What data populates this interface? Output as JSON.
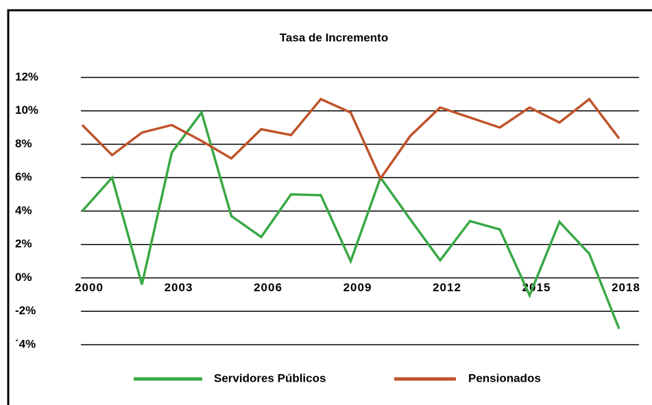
{
  "chart_data": {
    "type": "line",
    "title": "Tasa de Incremento",
    "x": [
      2000,
      2001,
      2002,
      2003,
      2004,
      2005,
      2006,
      2007,
      2008,
      2009,
      2010,
      2011,
      2012,
      2013,
      2014,
      2015,
      2016,
      2017,
      2018
    ],
    "series": [
      {
        "name": "Servidores Públicos",
        "color": "#3aa845",
        "values": [
          4.0,
          6.0,
          -0.4,
          7.5,
          9.9,
          3.7,
          2.45,
          5.0,
          4.95,
          1.0,
          6.0,
          3.5,
          1.05,
          3.4,
          2.9,
          -1.05,
          3.35,
          1.45,
          -3.05
        ]
      },
      {
        "name": "Pensionados",
        "color": "#c0532b",
        "values": [
          9.15,
          7.35,
          8.7,
          9.15,
          8.2,
          7.15,
          8.9,
          8.55,
          10.7,
          9.9,
          5.95,
          8.5,
          10.2,
          9.6,
          9.0,
          10.2,
          9.3,
          10.7,
          8.35
        ]
      }
    ],
    "xlim": [
      2000,
      2018
    ],
    "xticks": [
      2000,
      2003,
      2006,
      2009,
      2012,
      2015,
      2018
    ],
    "ylim": [
      -4,
      12
    ],
    "yticks": [
      {
        "value": -4,
        "label": "´4%"
      },
      {
        "value": -2,
        "label": "-2%"
      },
      {
        "value": 0,
        "label": "0%"
      },
      {
        "value": 2,
        "label": "2%"
      },
      {
        "value": 4,
        "label": "4%"
      },
      {
        "value": 6,
        "label": "6%"
      },
      {
        "value": 8,
        "label": "8%"
      },
      {
        "value": 10,
        "label": "10%"
      },
      {
        "value": 12,
        "label": "12%"
      }
    ],
    "grid": true,
    "legend": "bottom"
  }
}
